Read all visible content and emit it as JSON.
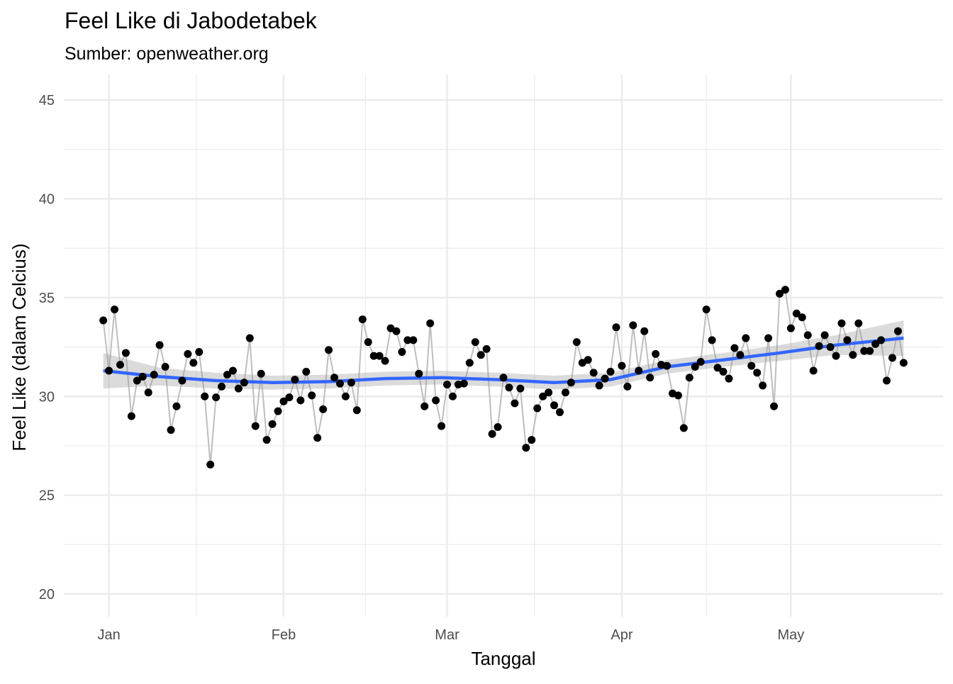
{
  "chart_data": {
    "type": "line",
    "title": "Feel Like di Jabodetabek",
    "subtitle": "Sumber: openweather.org",
    "x_label": "Tanggal",
    "y_label": "Feel Like (dalam Celcius)",
    "xlim": [
      -7,
      149
    ],
    "xticks": [
      {
        "value": 1,
        "label": "Jan"
      },
      {
        "value": 32,
        "label": "Feb"
      },
      {
        "value": 61,
        "label": "Mar"
      },
      {
        "value": 92,
        "label": "Apr"
      },
      {
        "value": 122,
        "label": "May"
      }
    ],
    "ylim": [
      18.85,
      46.3
    ],
    "yticks": [
      20,
      25,
      30,
      35,
      40,
      45
    ],
    "grid": true,
    "x": [
      0,
      1,
      2,
      3,
      4,
      5,
      6,
      7,
      8,
      9,
      10,
      11,
      12,
      13,
      14,
      15,
      16,
      17,
      18,
      19,
      20,
      21,
      22,
      23,
      24,
      25,
      26,
      27,
      28,
      29,
      30,
      31,
      32,
      33,
      34,
      35,
      36,
      37,
      38,
      39,
      40,
      41,
      42,
      43,
      44,
      45,
      46,
      47,
      48,
      49,
      50,
      51,
      52,
      53,
      54,
      55,
      56,
      57,
      58,
      59,
      60,
      61,
      62,
      63,
      64,
      65,
      66,
      67,
      68,
      69,
      70,
      71,
      72,
      73,
      74,
      75,
      76,
      77,
      78,
      79,
      80,
      81,
      82,
      83,
      84,
      85,
      86,
      87,
      88,
      89,
      90,
      91,
      92,
      93,
      94,
      95,
      96,
      97,
      98,
      99,
      100,
      101,
      102,
      103,
      104,
      105,
      106,
      107,
      108,
      109,
      110,
      111,
      112,
      113,
      114,
      115,
      116,
      117,
      118,
      119,
      120,
      121,
      122,
      123,
      124,
      125,
      126,
      127,
      128,
      129,
      130,
      131,
      132,
      133,
      134,
      135,
      136,
      137,
      138,
      139,
      140,
      141,
      142
    ],
    "series": [
      {
        "color": "#000000",
        "line_color": "#bebebe",
        "values": [
          33.85,
          31.3,
          34.4,
          31.6,
          32.2,
          29.0,
          30.8,
          31.0,
          30.2,
          31.1,
          32.6,
          31.5,
          28.3,
          29.5,
          30.8,
          32.15,
          31.7,
          32.25,
          30.0,
          26.55,
          29.95,
          30.5,
          31.1,
          31.3,
          30.4,
          30.7,
          32.95,
          28.5,
          31.15,
          27.8,
          28.6,
          29.25,
          29.75,
          29.95,
          30.85,
          29.8,
          31.25,
          30.05,
          27.9,
          29.35,
          32.35,
          30.95,
          30.65,
          30.0,
          30.7,
          29.3,
          33.9,
          32.75,
          32.05,
          32.05,
          31.8,
          33.45,
          33.3,
          32.25,
          32.85,
          32.85,
          31.15,
          29.5,
          33.7,
          29.8,
          28.5,
          30.6,
          30.0,
          30.6,
          30.65,
          31.7,
          32.75,
          32.1,
          32.4,
          28.1,
          28.45,
          30.95,
          30.45,
          29.65,
          30.4,
          27.4,
          27.8,
          29.4,
          30.0,
          30.2,
          29.55,
          29.2,
          30.2,
          30.7,
          32.75,
          31.7,
          31.85,
          31.2,
          30.55,
          30.9,
          31.25,
          33.5,
          31.55,
          30.5,
          33.6,
          31.3,
          33.3,
          30.95,
          32.15,
          31.6,
          31.55,
          30.15,
          30.05,
          28.4,
          30.95,
          31.5,
          31.75,
          34.4,
          32.85,
          31.45,
          31.25,
          30.9,
          32.45,
          32.1,
          32.95,
          31.55,
          31.2,
          30.55,
          32.95,
          29.5,
          35.2,
          35.4,
          33.45,
          34.2,
          34.0,
          33.1,
          31.3,
          32.55,
          33.1,
          32.5,
          32.05,
          33.7,
          32.85,
          32.1,
          33.7,
          32.3,
          32.3,
          32.65,
          32.85,
          30.8,
          31.95,
          33.3,
          31.7
        ]
      }
    ],
    "smooth": {
      "color": "#3366ff",
      "band_color": "#999999",
      "x": [
        0,
        10,
        20,
        30,
        40,
        50,
        60,
        70,
        80,
        90,
        100,
        110,
        120,
        130,
        142
      ],
      "values": [
        31.3,
        31.0,
        30.8,
        30.7,
        30.75,
        30.9,
        30.95,
        30.85,
        30.7,
        30.85,
        31.5,
        31.85,
        32.2,
        32.6,
        32.95
      ],
      "lower": [
        30.4,
        30.55,
        30.4,
        30.35,
        30.4,
        30.55,
        30.6,
        30.5,
        30.35,
        30.5,
        31.15,
        31.5,
        31.8,
        32.1,
        32.05
      ],
      "upper": [
        32.2,
        31.45,
        31.2,
        31.05,
        31.1,
        31.25,
        31.3,
        31.2,
        31.05,
        31.2,
        31.85,
        32.2,
        32.6,
        33.1,
        33.85
      ]
    }
  }
}
